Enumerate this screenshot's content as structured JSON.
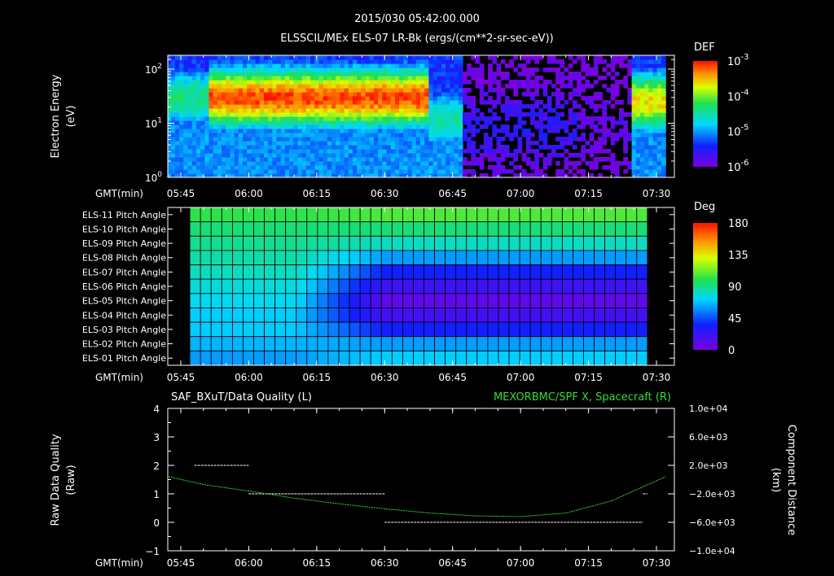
{
  "header": {
    "timestamp": "2015/030 05:42:00.000",
    "subtitle": "ELSSCIL/MEx ELS-07 LR-Bk  (ergs/(cm**2-sr-sec-eV))"
  },
  "colors": {
    "background": "#000000",
    "axis": "#ffffff",
    "orbit_line": "#33dd33",
    "right_title": "#33dd33"
  },
  "chart_data": [
    {
      "type": "heatmap",
      "name": "electron-energy-spectrogram",
      "ylabel_line1": "Electron Energy",
      "ylabel_line2": "(eV)",
      "xlabel": "GMT(min)",
      "xticks": [
        "05:45",
        "06:00",
        "06:15",
        "06:30",
        "06:45",
        "07:00",
        "07:15",
        "07:30"
      ],
      "yticks": [
        {
          "base": "10",
          "exp": "2",
          "value": 100
        },
        {
          "base": "10",
          "exp": "1",
          "value": 10
        },
        {
          "base": "10",
          "exp": "0",
          "value": 1
        }
      ],
      "ylim": [
        1,
        180
      ],
      "yscale": "log",
      "xlim_min": [
        340,
        452
      ],
      "colorbar": {
        "title": "DEF",
        "ticks": [
          {
            "base": "10",
            "exp": "-3"
          },
          {
            "base": "10",
            "exp": "-4"
          },
          {
            "base": "10",
            "exp": "-5"
          },
          {
            "base": "10",
            "exp": "-6"
          }
        ]
      },
      "intervals_min": [
        {
          "start": 340,
          "end": 351,
          "peak_energy_ev": 30,
          "intensity": 0.55
        },
        {
          "start": 351,
          "end": 400,
          "peak_energy_ev": 30,
          "intensity": 0.95
        },
        {
          "start": 400,
          "end": 407,
          "peak_energy_ev": 12,
          "intensity": 0.5
        },
        {
          "start": 407,
          "end": 432,
          "peak_energy_ev": 8,
          "intensity": 0.15
        },
        {
          "start": 432,
          "end": 445,
          "peak_energy_ev": 8,
          "intensity": 0.05
        },
        {
          "start": 445,
          "end": 452,
          "peak_energy_ev": 25,
          "intensity": 0.8
        }
      ]
    },
    {
      "type": "heatmap",
      "name": "pitch-angle-grid",
      "xlabel": "GMT(min)",
      "xticks": [
        "05:45",
        "06:00",
        "06:15",
        "06:30",
        "06:45",
        "07:00",
        "07:15",
        "07:30"
      ],
      "rows": [
        {
          "label": "ELS-11 Pitch Angle",
          "early_deg": 110,
          "late_deg": 115
        },
        {
          "label": "ELS-10 Pitch Angle",
          "early_deg": 100,
          "late_deg": 100
        },
        {
          "label": "ELS-09 Pitch Angle",
          "early_deg": 95,
          "late_deg": 85
        },
        {
          "label": "ELS-08 Pitch Angle",
          "early_deg": 90,
          "late_deg": 60
        },
        {
          "label": "ELS-07 Pitch Angle",
          "early_deg": 85,
          "late_deg": 35
        },
        {
          "label": "ELS-06 Pitch Angle",
          "early_deg": 80,
          "late_deg": 20
        },
        {
          "label": "ELS-05 Pitch Angle",
          "early_deg": 75,
          "late_deg": 10
        },
        {
          "label": "ELS-04 Pitch Angle",
          "early_deg": 70,
          "late_deg": 18
        },
        {
          "label": "ELS-03 Pitch Angle",
          "early_deg": 70,
          "late_deg": 35
        },
        {
          "label": "ELS-02 Pitch Angle",
          "early_deg": 65,
          "late_deg": 60
        },
        {
          "label": "ELS-01 Pitch Angle",
          "early_deg": 60,
          "late_deg": 70
        }
      ],
      "data_start_min": 347,
      "data_end_min": 448,
      "transition_min": [
        370,
        390
      ],
      "columns": 43,
      "colorbar": {
        "title": "Deg",
        "range": [
          0,
          180
        ],
        "ticks": [
          "180",
          "135",
          "90",
          "45",
          "0"
        ]
      }
    },
    {
      "type": "line",
      "name": "data-quality-and-orbit",
      "title_left": "SAF_BXuT/Data Quality (L)",
      "title_right": "MEXORBMC/SPF X, Spacecraft (R)",
      "ylabel_left_line1": "Raw Data Quality",
      "ylabel_left_line2": "(Raw)",
      "ylabel_right_line1": "Component Distance",
      "ylabel_right_line2": "(km)",
      "xlabel": "GMT(min)",
      "xticks": [
        "05:45",
        "06:00",
        "06:15",
        "06:30",
        "06:45",
        "07:00",
        "07:15",
        "07:30"
      ],
      "yticks_left": [
        "4",
        "3",
        "2",
        "1",
        "0",
        "−1"
      ],
      "ylim_left": [
        -1,
        4
      ],
      "yticks_right": [
        "1.0e+04",
        "6.0e+03",
        "2.0e+03",
        "−2.0e+03",
        "−6.0e+03",
        "−1.0e+04"
      ],
      "ylim_right": [
        -10000,
        10000
      ],
      "quality_segments": [
        {
          "start": 348,
          "end": 360,
          "value": 2
        },
        {
          "start": 360,
          "end": 390,
          "value": 1
        },
        {
          "start": 390,
          "end": 447,
          "value": 0
        },
        {
          "start": 447,
          "end": 448,
          "value": 1
        }
      ],
      "orbit_x_km": [
        {
          "t": 340,
          "v": 420
        },
        {
          "t": 350,
          "v": -700
        },
        {
          "t": 360,
          "v": -1600
        },
        {
          "t": 370,
          "v": -2600
        },
        {
          "t": 380,
          "v": -3400
        },
        {
          "t": 390,
          "v": -4100
        },
        {
          "t": 400,
          "v": -4700
        },
        {
          "t": 410,
          "v": -5100
        },
        {
          "t": 420,
          "v": -5200
        },
        {
          "t": 430,
          "v": -4700
        },
        {
          "t": 440,
          "v": -3000
        },
        {
          "t": 452,
          "v": 400
        }
      ]
    }
  ]
}
